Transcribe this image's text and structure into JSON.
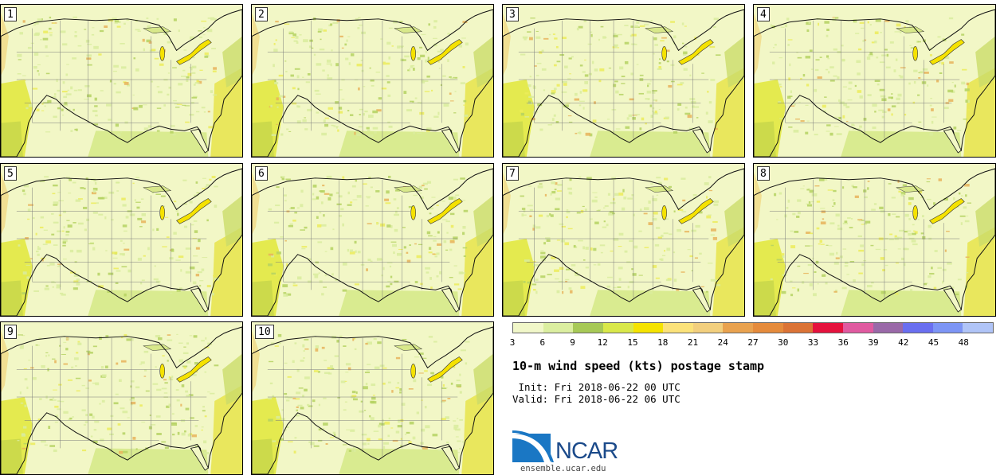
{
  "panels": [
    {
      "label": "1"
    },
    {
      "label": "2"
    },
    {
      "label": "3"
    },
    {
      "label": "4"
    },
    {
      "label": "5"
    },
    {
      "label": "6"
    },
    {
      "label": "7"
    },
    {
      "label": "8"
    },
    {
      "label": "9"
    },
    {
      "label": "10"
    }
  ],
  "colorbar": {
    "colors": [
      "#f1f7c9",
      "#dbeea0",
      "#a7c957",
      "#d9e84a",
      "#f5e300",
      "#fbe27a",
      "#f2cf7e",
      "#e9a24f",
      "#e58b3c",
      "#db7336",
      "#e5123d",
      "#e05aa0",
      "#9a69a8",
      "#6a6ff0",
      "#7d95f5",
      "#b0c4f7"
    ],
    "ticks": [
      "3",
      "6",
      "9",
      "12",
      "15",
      "18",
      "21",
      "24",
      "27",
      "30",
      "33",
      "36",
      "39",
      "42",
      "45",
      "48"
    ]
  },
  "title": "10-m wind speed (kts) postage stamp",
  "init": " Init: Fri 2018-06-22 00 UTC",
  "valid": "Valid: Fri 2018-06-22 06 UTC",
  "logo": {
    "text": "NCAR",
    "site": "ensemble.ucar.edu",
    "brand_color": "#1b4a8a",
    "accent_color": "#1a77c4"
  }
}
